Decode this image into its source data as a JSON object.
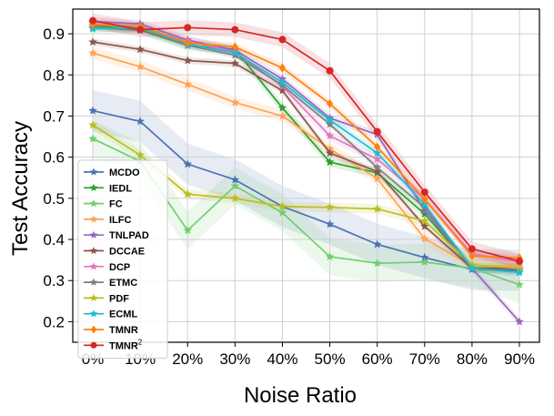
{
  "chart_data": {
    "type": "line",
    "xlabel": "Noise Ratio",
    "ylabel": "Test Accuracy",
    "categories": [
      "0%",
      "10%",
      "20%",
      "30%",
      "40%",
      "50%",
      "60%",
      "70%",
      "80%",
      "90%"
    ],
    "ylim": [
      0.15,
      0.96
    ],
    "yticks": [
      "0.2",
      "0.3",
      "0.4",
      "0.5",
      "0.6",
      "0.7",
      "0.8",
      "0.9"
    ],
    "grid": true,
    "legend_position": "lower-left",
    "series": [
      {
        "name": "MCDO",
        "color": "#4c72b0",
        "marker": "star",
        "values": [
          0.713,
          0.687,
          0.583,
          0.545,
          0.48,
          0.437,
          0.388,
          0.356,
          0.327,
          0.325
        ],
        "band": 0.05
      },
      {
        "name": "IEDL",
        "color": "#2ca02c",
        "marker": "star",
        "values": [
          0.92,
          0.91,
          0.872,
          0.862,
          0.72,
          0.588,
          0.562,
          0.462,
          0.33,
          0.33
        ],
        "band": 0.012
      },
      {
        "name": "FC",
        "color": "#6fcf6f",
        "marker": "star",
        "values": [
          0.645,
          0.59,
          0.422,
          0.53,
          0.465,
          0.358,
          0.342,
          0.345,
          0.33,
          0.29
        ],
        "band": 0.045
      },
      {
        "name": "ILFC",
        "color": "#ffa352",
        "marker": "star",
        "values": [
          0.853,
          0.82,
          0.777,
          0.733,
          0.7,
          0.62,
          0.548,
          0.402,
          0.335,
          0.335
        ],
        "band": 0.015
      },
      {
        "name": "TNLPAD",
        "color": "#9467bd",
        "marker": "star",
        "values": [
          0.93,
          0.924,
          0.885,
          0.86,
          0.79,
          0.695,
          0.655,
          0.47,
          0.33,
          0.2
        ],
        "band": 0.01
      },
      {
        "name": "DCCAE",
        "color": "#8c564b",
        "marker": "star",
        "values": [
          0.88,
          0.862,
          0.835,
          0.828,
          0.762,
          0.61,
          0.565,
          0.432,
          0.33,
          0.33
        ],
        "band": 0.008
      },
      {
        "name": "DCP",
        "color": "#e377c2",
        "marker": "star",
        "values": [
          0.925,
          0.915,
          0.882,
          0.856,
          0.772,
          0.652,
          0.595,
          0.498,
          0.365,
          0.345
        ],
        "band": 0.012
      },
      {
        "name": "ETMC",
        "color": "#7f7f7f",
        "marker": "star",
        "values": [
          0.915,
          0.908,
          0.872,
          0.848,
          0.775,
          0.68,
          0.575,
          0.478,
          0.33,
          0.32
        ],
        "band": 0.008
      },
      {
        "name": "PDF",
        "color": "#bcbd22",
        "marker": "star",
        "values": [
          0.678,
          0.605,
          0.51,
          0.5,
          0.48,
          0.478,
          0.474,
          0.445,
          0.338,
          0.33
        ],
        "band": 0.012
      },
      {
        "name": "ECML",
        "color": "#17becf",
        "marker": "star",
        "values": [
          0.912,
          0.915,
          0.875,
          0.854,
          0.782,
          0.69,
          0.61,
          0.485,
          0.33,
          0.32
        ],
        "band": 0.01
      },
      {
        "name": "TMNR",
        "color": "#ff7f0e",
        "marker": "diamond",
        "values": [
          0.922,
          0.918,
          0.878,
          0.868,
          0.817,
          0.73,
          0.625,
          0.498,
          0.36,
          0.355
        ],
        "band": 0.01
      },
      {
        "name": "TMNR",
        "name_sup": "2",
        "color": "#d62728",
        "marker": "circle",
        "values": [
          0.932,
          0.91,
          0.915,
          0.91,
          0.886,
          0.81,
          0.662,
          0.515,
          0.377,
          0.347
        ],
        "band": 0.018
      }
    ]
  }
}
